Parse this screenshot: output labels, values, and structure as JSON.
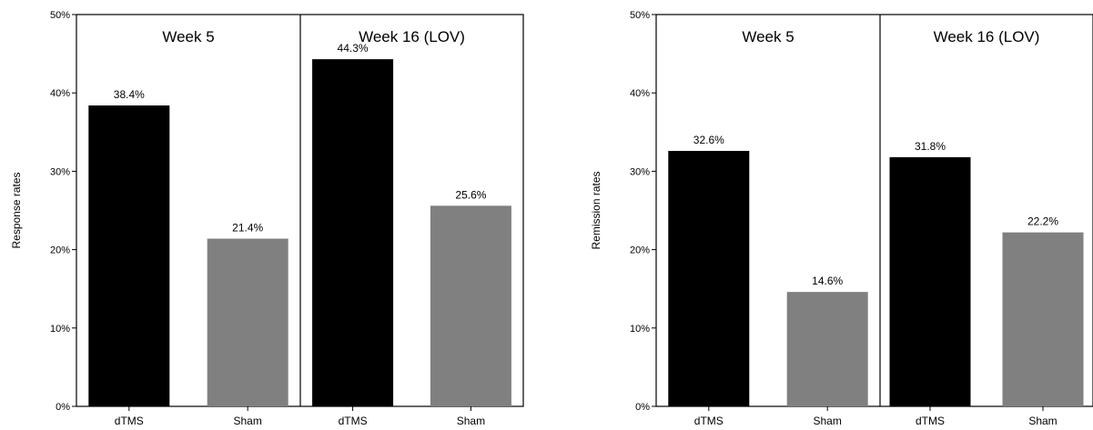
{
  "chart_data": [
    {
      "type": "bar",
      "ylabel": "Response rates",
      "ylim": [
        0,
        50
      ],
      "yticks": [
        "0%",
        "10%",
        "20%",
        "30%",
        "40%",
        "50%"
      ],
      "grid": false,
      "colors": {
        "dTMS": "#000000",
        "Sham": "#808080"
      },
      "panels": [
        {
          "title": "Week 5",
          "categories": [
            "dTMS",
            "Sham"
          ],
          "values": [
            38.4,
            21.4
          ],
          "value_labels": [
            "38.4%",
            "21.4%"
          ]
        },
        {
          "title": "Week 16 (LOV)",
          "categories": [
            "dTMS",
            "Sham"
          ],
          "values": [
            44.3,
            25.6
          ],
          "value_labels": [
            "44.3%",
            "25.6%"
          ]
        }
      ]
    },
    {
      "type": "bar",
      "ylabel": "Remission rates",
      "ylim": [
        0,
        50
      ],
      "yticks": [
        "0%",
        "10%",
        "20%",
        "30%",
        "40%",
        "50%"
      ],
      "grid": false,
      "colors": {
        "dTMS": "#000000",
        "Sham": "#808080"
      },
      "panels": [
        {
          "title": "Week 5",
          "categories": [
            "dTMS",
            "Sham"
          ],
          "values": [
            32.6,
            14.6
          ],
          "value_labels": [
            "32.6%",
            "14.6%"
          ]
        },
        {
          "title": "Week 16 (LOV)",
          "categories": [
            "dTMS",
            "Sham"
          ],
          "values": [
            31.8,
            22.2
          ],
          "value_labels": [
            "31.8%",
            "22.2%"
          ]
        }
      ]
    }
  ]
}
